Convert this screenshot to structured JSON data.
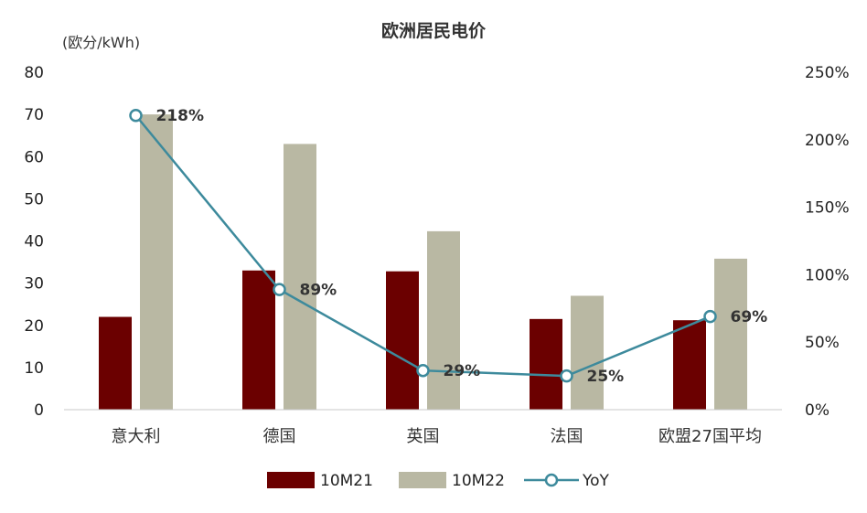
{
  "chart_data": {
    "type": "bar",
    "title": "欧洲居民电价",
    "ylabel": "(欧分/kWh)",
    "ylim": [
      0,
      80
    ],
    "y_ticks": [
      0,
      10,
      20,
      30,
      40,
      50,
      60,
      70,
      80
    ],
    "y2lim": [
      0,
      2.5
    ],
    "y2_tick_labels": [
      "0%",
      "50%",
      "100%",
      "150%",
      "200%",
      "250%"
    ],
    "categories": [
      "意大利",
      "德国",
      "英国",
      "法国",
      "欧盟27国平均"
    ],
    "series": [
      {
        "name": "10M21",
        "type": "bar",
        "axis": "left",
        "color": "#6b0000",
        "values": [
          22.0,
          33.0,
          32.8,
          21.5,
          21.2
        ]
      },
      {
        "name": "10M22",
        "type": "bar",
        "axis": "left",
        "color": "#b9b8a3",
        "values": [
          70.0,
          63.0,
          42.3,
          27.0,
          35.8
        ]
      },
      {
        "name": "YoY",
        "type": "line",
        "axis": "right",
        "color": "#3d8a9c",
        "values": [
          2.18,
          0.89,
          0.29,
          0.25,
          0.69
        ],
        "labels": [
          "218%",
          "89%",
          "29%",
          "25%",
          "69%"
        ]
      }
    ],
    "grid": false,
    "legend": "bottom"
  }
}
